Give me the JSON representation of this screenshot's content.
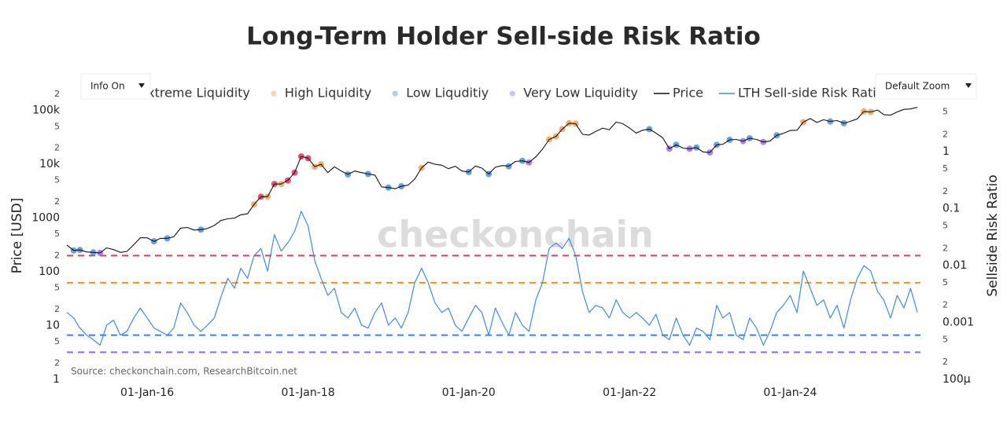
{
  "chart_data": {
    "type": "line",
    "title": "Long-Term Holder Sell-side Risk Ratio",
    "y_label": "Price [USD]",
    "y2_label": "Sellside Risk Ratio",
    "source": "Source: checkonchain.com, ResearchBitcoin.net",
    "watermark": "checkonchain",
    "controls": [
      "Info On",
      "Default Zoom"
    ],
    "log_y": true,
    "log_y2": true,
    "grid": false,
    "legend": "top",
    "xlim": [
      "2015-01-01",
      "2025-08-15"
    ],
    "xticks": [
      {
        "value": "2016-01-01",
        "label": "01-Jan-16"
      },
      {
        "value": "2018-01-01",
        "label": "01-Jan-18"
      },
      {
        "value": "2020-01-01",
        "label": "01-Jan-20"
      },
      {
        "value": "2022-01-01",
        "label": "01-Jan-22"
      },
      {
        "value": "2024-01-01",
        "label": "01-Jan-24"
      }
    ],
    "ylim": [
      1,
      300000
    ],
    "yticks": [
      1,
      2,
      5,
      10,
      {
        "value": 20,
        "label": "2"
      },
      {
        "value": 50,
        "label": "5"
      },
      100,
      {
        "value": 200,
        "label": "2"
      },
      {
        "value": 500,
        "label": "5"
      },
      1000,
      {
        "value": 2000,
        "label": "2"
      },
      {
        "value": 5000,
        "label": "5"
      },
      {
        "value": 10000,
        "label": "10k"
      },
      {
        "value": 20000,
        "label": "2"
      },
      {
        "value": 50000,
        "label": "5"
      },
      {
        "value": 100000,
        "label": "100k"
      },
      {
        "value": 200000,
        "label": "2"
      }
    ],
    "y2lim": [
      0.0001,
      15
    ],
    "y2ticks": [
      {
        "value": 0.0001,
        "label": "100μ"
      },
      {
        "value": 0.0002,
        "label": "2"
      },
      {
        "value": 0.0005,
        "label": "5"
      },
      0.001,
      {
        "value": 0.002,
        "label": "2"
      },
      {
        "value": 0.005,
        "label": "5"
      },
      0.01,
      {
        "value": 0.02,
        "label": "2"
      },
      {
        "value": 0.05,
        "label": "5"
      },
      0.1,
      {
        "value": 0.2,
        "label": "2"
      },
      {
        "value": 0.5,
        "label": "5"
      },
      1,
      2,
      5
    ],
    "thresholds": [
      {
        "value": 0.015,
        "color": "#f0375a"
      },
      {
        "value": 0.005,
        "color": "#f5901e"
      },
      {
        "value": 0.0006,
        "color": "#3d7ff0"
      },
      {
        "value": 0.0003,
        "color": "#8a6cf0"
      }
    ],
    "x": [
      "2015-01-01",
      "2015-02-01",
      "2015-03-01",
      "2015-04-01",
      "2015-05-01",
      "2015-06-01",
      "2015-07-01",
      "2015-08-01",
      "2015-09-01",
      "2015-10-01",
      "2015-11-01",
      "2015-12-01",
      "2016-01-01",
      "2016-02-01",
      "2016-03-01",
      "2016-04-01",
      "2016-05-01",
      "2016-06-01",
      "2016-07-01",
      "2016-08-01",
      "2016-09-01",
      "2016-10-01",
      "2016-11-01",
      "2016-12-01",
      "2017-01-01",
      "2017-02-01",
      "2017-03-01",
      "2017-04-01",
      "2017-05-01",
      "2017-06-01",
      "2017-07-01",
      "2017-08-01",
      "2017-09-01",
      "2017-10-01",
      "2017-11-01",
      "2017-12-01",
      "2018-01-01",
      "2018-02-01",
      "2018-03-01",
      "2018-04-01",
      "2018-05-01",
      "2018-06-01",
      "2018-07-01",
      "2018-08-01",
      "2018-09-01",
      "2018-10-01",
      "2018-11-01",
      "2018-12-01",
      "2019-01-01",
      "2019-02-01",
      "2019-03-01",
      "2019-04-01",
      "2019-05-01",
      "2019-06-01",
      "2019-07-01",
      "2019-08-01",
      "2019-09-01",
      "2019-10-01",
      "2019-11-01",
      "2019-12-01",
      "2020-01-01",
      "2020-02-01",
      "2020-03-01",
      "2020-04-01",
      "2020-05-01",
      "2020-06-01",
      "2020-07-01",
      "2020-08-01",
      "2020-09-01",
      "2020-10-01",
      "2020-11-01",
      "2020-12-01",
      "2021-01-01",
      "2021-02-01",
      "2021-03-01",
      "2021-04-01",
      "2021-05-01",
      "2021-06-01",
      "2021-07-01",
      "2021-08-01",
      "2021-09-01",
      "2021-10-01",
      "2021-11-01",
      "2021-12-01",
      "2022-01-01",
      "2022-02-01",
      "2022-03-01",
      "2022-04-01",
      "2022-05-01",
      "2022-06-01",
      "2022-07-01",
      "2022-08-01",
      "2022-09-01",
      "2022-10-01",
      "2022-11-01",
      "2022-12-01",
      "2023-01-01",
      "2023-02-01",
      "2023-03-01",
      "2023-04-01",
      "2023-05-01",
      "2023-06-01",
      "2023-07-01",
      "2023-08-01",
      "2023-09-01",
      "2023-10-01",
      "2023-11-01",
      "2023-12-01",
      "2024-01-01",
      "2024-02-01",
      "2024-03-01",
      "2024-04-01",
      "2024-05-01",
      "2024-06-01",
      "2024-07-01",
      "2024-08-01",
      "2024-09-01",
      "2024-10-01",
      "2024-11-01",
      "2024-12-01",
      "2025-01-01",
      "2025-02-01",
      "2025-03-01",
      "2025-04-01",
      "2025-05-01",
      "2025-06-01",
      "2025-07-01",
      "2025-08-01"
    ],
    "series": [
      {
        "name": "Extreme Liquidity",
        "color": "#e8315a",
        "marker": true,
        "x": [
          "2017-06-01",
          "2017-08-01",
          "2017-10-01",
          "2017-11-01",
          "2017-12-01",
          "2018-01-01"
        ],
        "values": [
          2500,
          4300,
          5000,
          7000,
          14000,
          13000
        ]
      },
      {
        "name": "High Liquidity",
        "color": "#f5a14a",
        "marker": true,
        "x": [
          "2017-05-01",
          "2017-07-01",
          "2017-09-01",
          "2018-02-01",
          "2018-03-01",
          "2019-06-01",
          "2021-01-01",
          "2021-02-01",
          "2021-03-01",
          "2021-04-01",
          "2021-05-01",
          "2024-03-01",
          "2024-12-01",
          "2025-01-01"
        ],
        "values": [
          1800,
          2500,
          4300,
          9000,
          10000,
          8600,
          29000,
          33000,
          45000,
          58000,
          57000,
          61000,
          96000,
          94000
        ]
      },
      {
        "name": "Low Liquditiy",
        "color": "#4a90e2",
        "marker": true,
        "x": [
          "2015-02-01",
          "2015-03-01",
          "2015-05-01",
          "2016-02-01",
          "2016-04-01",
          "2016-09-01",
          "2018-07-01",
          "2018-10-01",
          "2019-01-01",
          "2019-03-01",
          "2020-01-01",
          "2020-04-01",
          "2020-07-01",
          "2020-09-01",
          "2022-04-01",
          "2022-08-01",
          "2022-11-01",
          "2023-02-01",
          "2023-04-01",
          "2023-07-01",
          "2023-11-01",
          "2024-07-01",
          "2024-09-01"
        ],
        "values": [
          250,
          255,
          230,
          370,
          420,
          610,
          6500,
          6600,
          3700,
          3900,
          7200,
          6600,
          9200,
          11600,
          45000,
          23000,
          20500,
          23000,
          28500,
          30500,
          34500,
          62500,
          58000
        ]
      },
      {
        "name": "Very Low Liquidity",
        "color": "#9b6cf0",
        "marker": true,
        "x": [
          "2015-06-01",
          "2020-10-01",
          "2022-07-01",
          "2022-10-01",
          "2023-01-01",
          "2023-06-01",
          "2023-09-01"
        ],
        "values": [
          225,
          10800,
          19500,
          19400,
          16600,
          27000,
          26000
        ]
      },
      {
        "name": "Price",
        "color": "#111111",
        "values": [
          315,
          250,
          255,
          235,
          230,
          225,
          280,
          260,
          230,
          240,
          320,
          430,
          430,
          370,
          420,
          420,
          450,
          650,
          670,
          600,
          610,
          640,
          730,
          900,
          970,
          1000,
          1150,
          1200,
          1800,
          2500,
          2500,
          4300,
          4300,
          5000,
          7000,
          14000,
          13000,
          9000,
          10000,
          7000,
          9000,
          7500,
          6500,
          7500,
          7000,
          6600,
          6300,
          3800,
          3700,
          3500,
          3900,
          4100,
          5300,
          8600,
          11000,
          10000,
          9600,
          8300,
          9200,
          7500,
          7200,
          9300,
          8500,
          6600,
          8800,
          9500,
          9200,
          11300,
          11600,
          10800,
          13800,
          19000,
          29000,
          33000,
          45000,
          58000,
          57000,
          36000,
          35000,
          41000,
          47000,
          44000,
          61000,
          57000,
          47000,
          38000,
          43000,
          45000,
          38000,
          31000,
          19500,
          23000,
          20000,
          19400,
          20500,
          17000,
          16600,
          23000,
          23500,
          28500,
          29000,
          27000,
          30500,
          29000,
          26000,
          27000,
          34500,
          37500,
          42500,
          43000,
          61000,
          71000,
          60000,
          67500,
          62500,
          65000,
          58000,
          63000,
          70000,
          96000,
          94000,
          102000,
          84000,
          82000,
          94000,
          105000,
          107000,
          115000
        ]
      },
      {
        "name": "LTH Sell-side Risk Ratio",
        "color": "#3d8be8",
        "axis": "y2",
        "values": [
          0.0015,
          0.0012,
          0.0008,
          0.0006,
          0.0005,
          0.0004,
          0.0009,
          0.0011,
          0.0006,
          0.0007,
          0.0012,
          0.0018,
          0.0012,
          0.0008,
          0.0007,
          0.0006,
          0.0008,
          0.0022,
          0.0015,
          0.0009,
          0.0007,
          0.0009,
          0.0012,
          0.0028,
          0.006,
          0.004,
          0.009,
          0.006,
          0.015,
          0.02,
          0.008,
          0.035,
          0.018,
          0.025,
          0.04,
          0.09,
          0.05,
          0.012,
          0.006,
          0.003,
          0.004,
          0.0015,
          0.0012,
          0.0018,
          0.0009,
          0.0008,
          0.0015,
          0.0022,
          0.0009,
          0.0012,
          0.0008,
          0.0015,
          0.005,
          0.009,
          0.005,
          0.0022,
          0.0015,
          0.0018,
          0.0009,
          0.0007,
          0.0012,
          0.002,
          0.0015,
          0.0006,
          0.0018,
          0.001,
          0.0006,
          0.0015,
          0.0009,
          0.0007,
          0.0025,
          0.005,
          0.02,
          0.025,
          0.02,
          0.03,
          0.015,
          0.0035,
          0.0015,
          0.002,
          0.0018,
          0.0012,
          0.0025,
          0.0015,
          0.0012,
          0.0015,
          0.0012,
          0.0009,
          0.0014,
          0.0006,
          0.0005,
          0.0012,
          0.0006,
          0.0004,
          0.0008,
          0.0007,
          0.0005,
          0.002,
          0.0012,
          0.0015,
          0.0006,
          0.0005,
          0.0012,
          0.0008,
          0.0004,
          0.0007,
          0.0015,
          0.002,
          0.003,
          0.0015,
          0.008,
          0.004,
          0.002,
          0.0025,
          0.0012,
          0.002,
          0.0008,
          0.0025,
          0.006,
          0.01,
          0.008,
          0.0035,
          0.0025,
          0.0012,
          0.003,
          0.0018,
          0.004,
          0.0015
        ]
      }
    ]
  }
}
